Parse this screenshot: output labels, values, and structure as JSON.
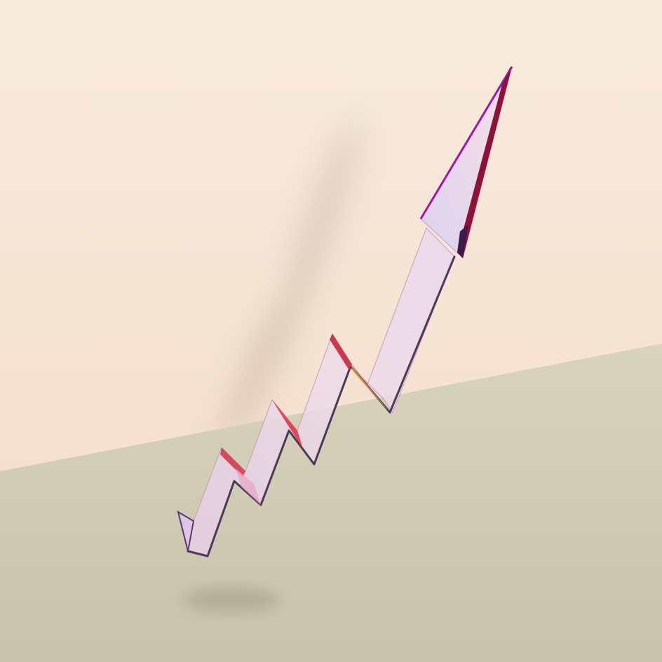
{
  "scene": {
    "subject": "zigzag-rising-arrow",
    "colors": {
      "wall_top": "#f8ebdd",
      "wall_bottom": "#f4dcca",
      "floor_top": "#d7d4bd",
      "floor_bottom": "#c7c2ac",
      "arrow_face": "#e9d3e6",
      "arrow_edge_dark": "#4a3a57",
      "arrow_edge_red": "#d7263d",
      "arrow_edge_purple": "#9a18b4",
      "shadow": "#7a6a5a"
    }
  }
}
